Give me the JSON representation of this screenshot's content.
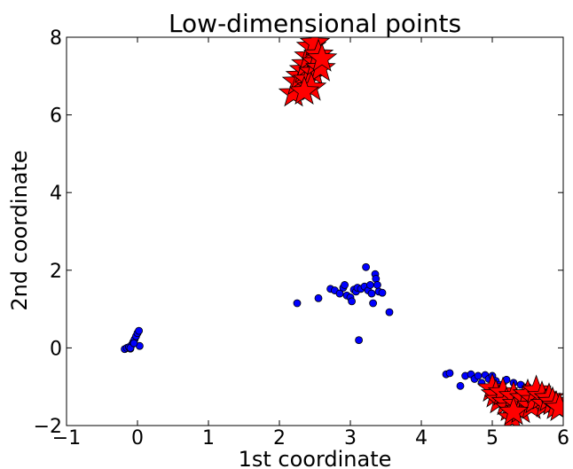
{
  "chart_data": {
    "type": "scatter",
    "title": "Low-dimensional points",
    "xlabel": "1st coordinate",
    "ylabel": "2nd coordinate",
    "xlim": [
      -1,
      6
    ],
    "ylim": [
      -2,
      8
    ],
    "xticks": [
      -1,
      0,
      1,
      2,
      3,
      4,
      5,
      6
    ],
    "yticks": [
      -2,
      0,
      2,
      4,
      6,
      8
    ],
    "grid": false,
    "series": [
      {
        "marker": "circle",
        "color": "#0000ff",
        "points": [
          [
            -0.18,
            -0.03
          ],
          [
            -0.15,
            0.0
          ],
          [
            -0.12,
            0.02
          ],
          [
            -0.1,
            -0.02
          ],
          [
            -0.08,
            0.08
          ],
          [
            -0.06,
            0.15
          ],
          [
            -0.04,
            0.22
          ],
          [
            -0.02,
            0.3
          ],
          [
            0.0,
            0.38
          ],
          [
            0.02,
            0.44
          ],
          [
            0.03,
            0.05
          ],
          [
            -0.1,
            0.0
          ],
          [
            -0.05,
            0.12
          ],
          [
            2.25,
            1.15
          ],
          [
            2.55,
            1.28
          ],
          [
            2.72,
            1.52
          ],
          [
            2.78,
            1.48
          ],
          [
            2.85,
            1.4
          ],
          [
            2.9,
            1.55
          ],
          [
            2.92,
            1.62
          ],
          [
            2.95,
            1.35
          ],
          [
            3.0,
            1.3
          ],
          [
            3.02,
            1.2
          ],
          [
            3.05,
            1.5
          ],
          [
            3.08,
            1.45
          ],
          [
            3.1,
            1.55
          ],
          [
            3.12,
            0.2
          ],
          [
            3.15,
            1.52
          ],
          [
            3.2,
            1.58
          ],
          [
            3.22,
            2.08
          ],
          [
            3.25,
            1.48
          ],
          [
            3.28,
            1.62
          ],
          [
            3.3,
            1.4
          ],
          [
            3.32,
            1.15
          ],
          [
            3.35,
            1.9
          ],
          [
            3.36,
            1.78
          ],
          [
            3.38,
            1.62
          ],
          [
            3.4,
            1.45
          ],
          [
            3.45,
            1.42
          ],
          [
            3.55,
            0.92
          ],
          [
            4.35,
            -0.68
          ],
          [
            4.4,
            -0.65
          ],
          [
            4.55,
            -0.98
          ],
          [
            4.62,
            -0.72
          ],
          [
            4.7,
            -0.68
          ],
          [
            4.75,
            -0.8
          ],
          [
            4.8,
            -0.72
          ],
          [
            4.85,
            -0.9
          ],
          [
            4.9,
            -0.7
          ],
          [
            4.95,
            -0.8
          ],
          [
            5.0,
            -0.72
          ],
          [
            5.05,
            -0.85
          ],
          [
            5.1,
            -0.95
          ],
          [
            5.2,
            -0.82
          ],
          [
            5.3,
            -0.9
          ],
          [
            5.4,
            -0.95
          ],
          [
            5.5,
            -1.0
          ]
        ]
      },
      {
        "marker": "star",
        "color": "#ff0000",
        "points": [
          [
            2.2,
            6.55
          ],
          [
            2.25,
            6.85
          ],
          [
            2.3,
            7.0
          ],
          [
            2.35,
            7.15
          ],
          [
            2.38,
            7.3
          ],
          [
            2.4,
            6.9
          ],
          [
            2.42,
            7.5
          ],
          [
            2.45,
            7.75
          ],
          [
            2.5,
            7.85
          ],
          [
            2.48,
            7.1
          ],
          [
            2.52,
            7.35
          ],
          [
            2.55,
            7.55
          ],
          [
            2.58,
            7.2
          ],
          [
            2.6,
            7.45
          ],
          [
            2.45,
            6.7
          ],
          [
            2.35,
            6.6
          ],
          [
            5.0,
            -1.05
          ],
          [
            5.05,
            -1.2
          ],
          [
            5.1,
            -1.35
          ],
          [
            5.15,
            -1.15
          ],
          [
            5.2,
            -1.4
          ],
          [
            5.25,
            -1.55
          ],
          [
            5.28,
            -1.8
          ],
          [
            5.3,
            -1.25
          ],
          [
            5.35,
            -1.45
          ],
          [
            5.4,
            -1.6
          ],
          [
            5.45,
            -1.3
          ],
          [
            5.5,
            -1.2
          ],
          [
            5.55,
            -1.5
          ],
          [
            5.6,
            -1.35
          ],
          [
            5.62,
            -1.1
          ],
          [
            5.7,
            -1.25
          ],
          [
            5.75,
            -1.45
          ],
          [
            5.8,
            -1.3
          ],
          [
            5.85,
            -1.4
          ],
          [
            5.9,
            -1.5
          ],
          [
            5.95,
            -1.55
          ],
          [
            5.3,
            -1.65
          ]
        ]
      }
    ]
  }
}
